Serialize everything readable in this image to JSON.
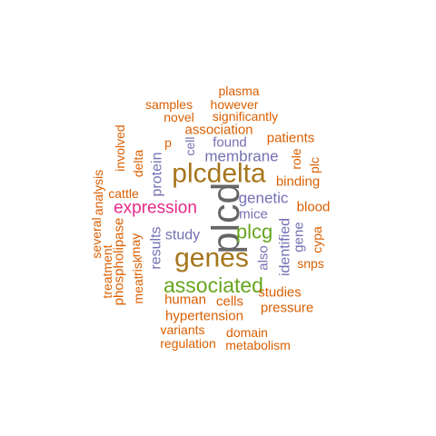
{
  "words": [
    {
      "text": "plcd",
      "color": "#666666"
    },
    {
      "text": "plcdelta",
      "color": "#A6761D"
    },
    {
      "text": "genes",
      "color": "#A6761D"
    },
    {
      "text": "associated",
      "color": "#66A61E"
    },
    {
      "text": "plcg",
      "color": "#66A61E"
    },
    {
      "text": "expression",
      "color": "#E7298A"
    },
    {
      "text": "membrane",
      "color": "#7570B3"
    },
    {
      "text": "genetic",
      "color": "#7570B3"
    },
    {
      "text": "mice",
      "color": "#7570B3"
    },
    {
      "text": "study",
      "color": "#7570B3"
    },
    {
      "text": "found",
      "color": "#7570B3"
    },
    {
      "text": "results",
      "color": "#7570B3"
    },
    {
      "text": "protein",
      "color": "#7570B3"
    },
    {
      "text": "cell",
      "color": "#7570B3"
    },
    {
      "text": "identified",
      "color": "#7570B3"
    },
    {
      "text": "gene",
      "color": "#7570B3"
    },
    {
      "text": "also",
      "color": "#7570B3"
    },
    {
      "text": "association",
      "color": "#D95F02"
    },
    {
      "text": "plasma",
      "color": "#D95F02"
    },
    {
      "text": "however",
      "color": "#D95F02"
    },
    {
      "text": "samples",
      "color": "#D95F02"
    },
    {
      "text": "novel",
      "color": "#D95F02"
    },
    {
      "text": "significantly",
      "color": "#D95F02"
    },
    {
      "text": "p",
      "color": "#D95F02"
    },
    {
      "text": "patients",
      "color": "#D95F02"
    },
    {
      "text": "role",
      "color": "#D95F02"
    },
    {
      "text": "plc",
      "color": "#D95F02"
    },
    {
      "text": "binding",
      "color": "#D95F02"
    },
    {
      "text": "blood",
      "color": "#D95F02"
    },
    {
      "text": "cypa",
      "color": "#D95F02"
    },
    {
      "text": "snps",
      "color": "#D95F02"
    },
    {
      "text": "studies",
      "color": "#D95F02"
    },
    {
      "text": "pressure",
      "color": "#D95F02"
    },
    {
      "text": "cells",
      "color": "#D95F02"
    },
    {
      "text": "human",
      "color": "#D95F02"
    },
    {
      "text": "hypertension",
      "color": "#D95F02"
    },
    {
      "text": "variants",
      "color": "#D95F02"
    },
    {
      "text": "domain",
      "color": "#D95F02"
    },
    {
      "text": "regulation",
      "color": "#D95F02"
    },
    {
      "text": "metabolism",
      "color": "#D95F02"
    },
    {
      "text": "delta",
      "color": "#D95F02"
    },
    {
      "text": "involved",
      "color": "#D95F02"
    },
    {
      "text": "analysis",
      "color": "#D95F02"
    },
    {
      "text": "cattle",
      "color": "#D95F02"
    },
    {
      "text": "several",
      "color": "#D95F02"
    },
    {
      "text": "treatment",
      "color": "#D95F02"
    },
    {
      "text": "phospholipase",
      "color": "#D95F02"
    },
    {
      "text": "may",
      "color": "#D95F02"
    },
    {
      "text": "risk",
      "color": "#D95F02"
    },
    {
      "text": "meat",
      "color": "#D95F02"
    }
  ]
}
